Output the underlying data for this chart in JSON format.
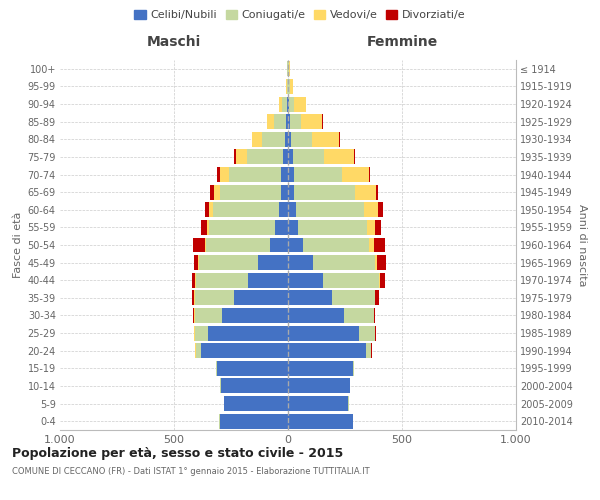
{
  "age_groups": [
    "0-4",
    "5-9",
    "10-14",
    "15-19",
    "20-24",
    "25-29",
    "30-34",
    "35-39",
    "40-44",
    "45-49",
    "50-54",
    "55-59",
    "60-64",
    "65-69",
    "70-74",
    "75-79",
    "80-84",
    "85-89",
    "90-94",
    "95-99",
    "100+"
  ],
  "birth_years": [
    "2010-2014",
    "2005-2009",
    "2000-2004",
    "1995-1999",
    "1990-1994",
    "1985-1989",
    "1980-1984",
    "1975-1979",
    "1970-1974",
    "1965-1969",
    "1960-1964",
    "1955-1959",
    "1950-1954",
    "1945-1949",
    "1940-1944",
    "1935-1939",
    "1930-1934",
    "1925-1929",
    "1920-1924",
    "1915-1919",
    "≤ 1914"
  ],
  "male": {
    "single": [
      300,
      280,
      295,
      310,
      380,
      350,
      290,
      235,
      175,
      130,
      80,
      55,
      40,
      30,
      30,
      20,
      15,
      10,
      5,
      2,
      2
    ],
    "married": [
      2,
      2,
      3,
      5,
      25,
      60,
      120,
      175,
      230,
      260,
      280,
      290,
      290,
      270,
      230,
      160,
      100,
      50,
      20,
      3,
      2
    ],
    "widowed": [
      0,
      0,
      0,
      0,
      1,
      1,
      1,
      1,
      2,
      3,
      5,
      10,
      15,
      25,
      40,
      50,
      45,
      30,
      15,
      3,
      1
    ],
    "divorced": [
      0,
      0,
      0,
      1,
      2,
      3,
      5,
      10,
      15,
      20,
      50,
      25,
      20,
      15,
      10,
      5,
      0,
      0,
      0,
      0,
      0
    ]
  },
  "female": {
    "single": [
      285,
      265,
      270,
      285,
      340,
      310,
      245,
      195,
      155,
      110,
      65,
      45,
      35,
      25,
      25,
      20,
      15,
      10,
      5,
      2,
      2
    ],
    "married": [
      2,
      2,
      3,
      5,
      25,
      70,
      130,
      185,
      245,
      270,
      290,
      300,
      300,
      270,
      210,
      140,
      90,
      45,
      20,
      5,
      2
    ],
    "widowed": [
      0,
      0,
      0,
      0,
      1,
      1,
      2,
      3,
      5,
      10,
      20,
      35,
      60,
      90,
      120,
      130,
      120,
      95,
      55,
      15,
      3
    ],
    "divorced": [
      0,
      0,
      0,
      1,
      2,
      3,
      5,
      15,
      20,
      40,
      50,
      30,
      20,
      10,
      5,
      5,
      5,
      3,
      0,
      0,
      0
    ]
  },
  "colors": {
    "single": "#4472C4",
    "married": "#C5D8A0",
    "widowed": "#FFD966",
    "divorced": "#C00000"
  },
  "legend_labels": [
    "Celibi/Nubili",
    "Coniugati/e",
    "Vedovi/e",
    "Divorziati/e"
  ],
  "xlim": 1000,
  "xlabel_left": "Maschi",
  "xlabel_right": "Femmine",
  "ylabel_left": "Fasce di età",
  "ylabel_right": "Anni di nascita",
  "title": "Popolazione per età, sesso e stato civile - 2015",
  "subtitle": "COMUNE DI CECCANO (FR) - Dati ISTAT 1° gennaio 2015 - Elaborazione TUTTITALIA.IT",
  "bg_color": "#ffffff",
  "grid_color": "#cccccc"
}
